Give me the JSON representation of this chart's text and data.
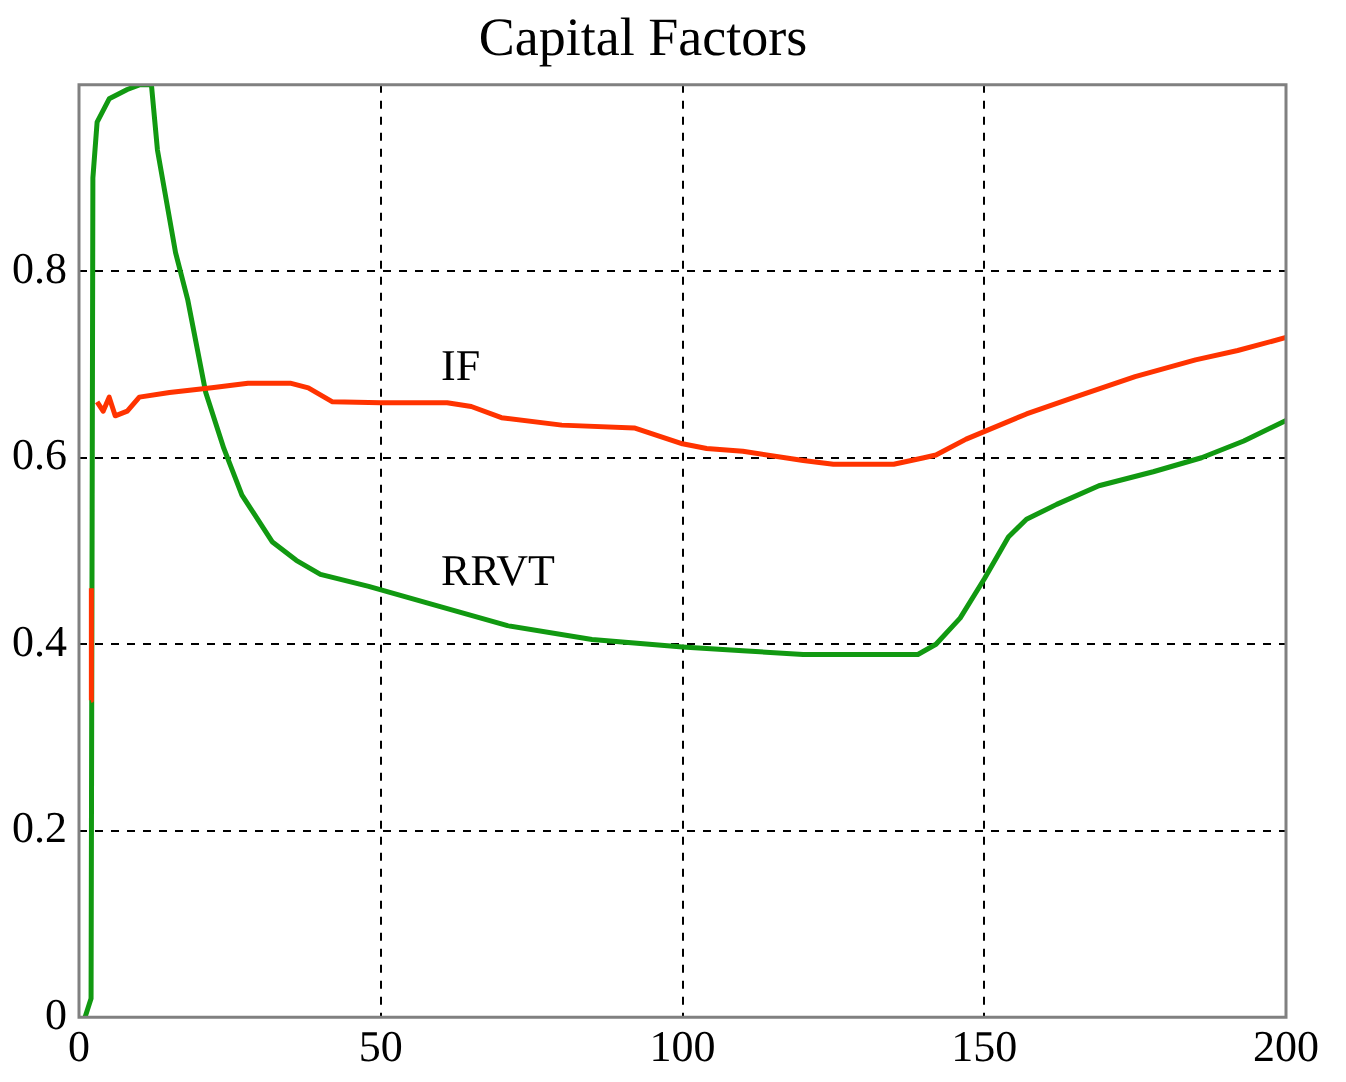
{
  "chart_data": {
    "type": "line",
    "title": "Capital Factors",
    "xlim": [
      0,
      200
    ],
    "xticks": [
      0,
      50,
      100,
      150,
      200
    ],
    "ylim": [
      0,
      1
    ],
    "yticks": [
      0,
      0.2,
      0.4,
      0.6,
      0.8
    ],
    "grid": true,
    "legend": false,
    "line_style": "solid",
    "marker": "none",
    "series": [
      {
        "name": "IF",
        "color": "#ff3300",
        "x": [
          2,
          2.05,
          2.5,
          3,
          4,
          5,
          6,
          8,
          10,
          15,
          22,
          28,
          35,
          38,
          42,
          50,
          61,
          65,
          70,
          80,
          92,
          100,
          104,
          110,
          120,
          125,
          135,
          140,
          142,
          147,
          157,
          165,
          175,
          185,
          192,
          200
        ],
        "values": [
          0.34,
          0.46,
          null,
          0.66,
          0.65,
          0.665,
          0.645,
          0.65,
          0.665,
          0.67,
          0.675,
          0.68,
          0.68,
          0.675,
          0.66,
          0.659,
          0.659,
          0.655,
          0.643,
          0.635,
          0.632,
          0.615,
          0.61,
          0.607,
          0.597,
          0.593,
          0.593,
          0.6,
          0.603,
          0.62,
          0.647,
          0.665,
          0.687,
          0.705,
          0.715,
          0.729
        ]
      },
      {
        "name": "RRVT",
        "color": "#119911",
        "x": [
          1,
          2,
          2.3,
          3,
          5,
          8,
          10,
          12,
          13,
          16,
          18,
          21,
          24,
          27,
          32,
          36,
          40,
          48,
          60,
          71,
          85,
          100,
          110,
          120,
          130,
          139,
          142,
          146,
          150,
          154,
          157,
          162,
          169,
          178,
          186,
          193,
          200
        ],
        "values": [
          0,
          0.02,
          0.9,
          0.96,
          0.985,
          0.995,
          1,
          1,
          0.93,
          0.82,
          0.77,
          0.67,
          0.61,
          0.56,
          0.51,
          0.49,
          0.475,
          0.462,
          0.44,
          0.42,
          0.405,
          0.397,
          0.393,
          0.389,
          0.389,
          0.389,
          0.4,
          0.428,
          0.47,
          0.515,
          0.534,
          0.55,
          0.57,
          0.585,
          0.6,
          0.618,
          0.64
        ]
      }
    ]
  }
}
